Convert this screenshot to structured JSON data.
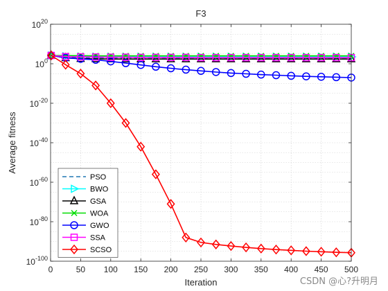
{
  "chart_data": {
    "type": "line",
    "title": "F3",
    "xlabel": "Iteration",
    "ylabel": "Average fitness",
    "xlim": [
      0,
      500
    ],
    "ylim_log10": [
      -100,
      20
    ],
    "yscale": "log",
    "grid": true,
    "legend_position": "bottom-left",
    "xticks": [
      "0",
      "50",
      "100",
      "150",
      "200",
      "250",
      "300",
      "350",
      "400",
      "450",
      "500"
    ],
    "yticks": [
      {
        "exp": 20,
        "base": "10",
        "sup": "20"
      },
      {
        "exp": 0,
        "base": "10",
        "sup": "0"
      },
      {
        "exp": -20,
        "base": "10",
        "sup": "-20"
      },
      {
        "exp": -40,
        "base": "10",
        "sup": "-40"
      },
      {
        "exp": -60,
        "base": "10",
        "sup": "-60"
      },
      {
        "exp": -80,
        "base": "10",
        "sup": "-80"
      },
      {
        "exp": -100,
        "base": "10",
        "sup": "-100"
      }
    ],
    "x": [
      1,
      25,
      50,
      75,
      100,
      125,
      150,
      175,
      200,
      225,
      250,
      275,
      300,
      325,
      350,
      375,
      400,
      425,
      450,
      475,
      500
    ],
    "series": [
      {
        "name": "PSO",
        "color": "#1f77b4",
        "marker": "none",
        "dash": true,
        "log10_values": [
          4.2,
          3.2,
          3.0,
          3.0,
          3.0,
          3.0,
          3.0,
          3.0,
          3.0,
          3.0,
          3.0,
          3.0,
          3.0,
          3.0,
          3.0,
          3.0,
          3.0,
          3.0,
          3.0,
          3.0,
          3.0
        ]
      },
      {
        "name": "BWO",
        "color": "#00ffff",
        "marker": "triangle-right",
        "log10_values": [
          4.2,
          3.8,
          3.6,
          3.5,
          3.5,
          3.5,
          3.5,
          3.5,
          3.5,
          3.5,
          3.5,
          3.5,
          3.5,
          3.5,
          3.5,
          3.5,
          3.5,
          3.5,
          3.5,
          3.5,
          3.5
        ]
      },
      {
        "name": "GSA",
        "color": "#000000",
        "marker": "triangle-up",
        "log10_values": [
          4.2,
          3.0,
          2.6,
          2.5,
          2.4,
          2.4,
          2.4,
          2.4,
          2.4,
          2.4,
          2.4,
          2.4,
          2.4,
          2.4,
          2.4,
          2.4,
          2.4,
          2.4,
          2.4,
          2.4,
          2.4
        ]
      },
      {
        "name": "WOA",
        "color": "#00dd00",
        "marker": "x",
        "log10_values": [
          4.2,
          4.1,
          4.1,
          4.0,
          4.0,
          4.0,
          4.0,
          4.0,
          4.0,
          4.0,
          4.0,
          4.0,
          4.0,
          4.0,
          4.0,
          4.0,
          4.0,
          4.0,
          4.0,
          4.0,
          4.0
        ]
      },
      {
        "name": "GWO",
        "color": "#0000ff",
        "marker": "circle",
        "log10_values": [
          4.2,
          3.0,
          2.5,
          2.0,
          1.2,
          0.3,
          -0.6,
          -1.5,
          -2.3,
          -3.0,
          -3.6,
          -4.2,
          -4.7,
          -5.1,
          -5.5,
          -5.8,
          -6.1,
          -6.4,
          -6.6,
          -6.8,
          -7.0
        ]
      },
      {
        "name": "SSA",
        "color": "#ff00ff",
        "marker": "square",
        "log10_values": [
          4.2,
          3.6,
          3.5,
          3.4,
          3.3,
          3.3,
          3.2,
          3.2,
          3.2,
          3.2,
          3.1,
          3.1,
          3.1,
          3.1,
          3.1,
          3.1,
          3.1,
          3.1,
          3.1,
          3.1,
          3.1
        ]
      },
      {
        "name": "SCSO",
        "color": "#ff0000",
        "marker": "diamond",
        "log10_values": [
          4.2,
          -0.5,
          -5.0,
          -11.0,
          -20.0,
          -30.0,
          -42.0,
          -56.0,
          -71.0,
          -88.0,
          -90.5,
          -91.5,
          -92.3,
          -93.0,
          -93.6,
          -94.1,
          -94.5,
          -94.9,
          -95.2,
          -95.5,
          -95.7
        ]
      }
    ]
  },
  "watermark": "CSDN @心?升明月"
}
